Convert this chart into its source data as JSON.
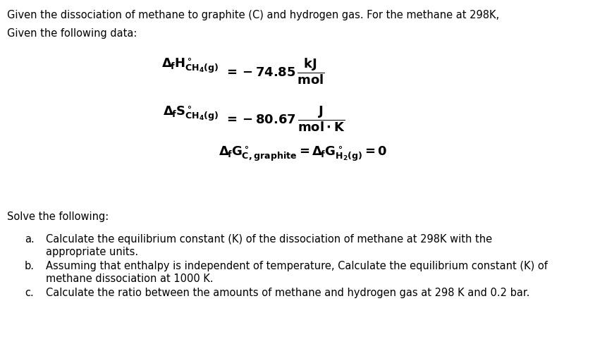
{
  "bg_color": "#ffffff",
  "text_color": "#000000",
  "line1": "Given the dissociation of methane to graphite (C) and hydrogen gas. For the methane at 298K,",
  "line2": "Given the following data:",
  "solve_header": "Solve the following:",
  "item_a_label": "a.",
  "item_a_text": "Calculate the equilibrium constant (K) of the dissociation of methane at 298K with the\nappropriate units.",
  "item_b_label": "b.",
  "item_b_text": "Assuming that enthalpy is independent of temperature, Calculate the equilibrium constant (K) of\nmethane dissociation at 1000 K.",
  "item_c_label": "c.",
  "item_c_text": "Calculate the ratio between the amounts of methane and hydrogen gas at 298 K and 0.2 bar.",
  "fontsize_body": 10.5,
  "fontsize_math": 13
}
